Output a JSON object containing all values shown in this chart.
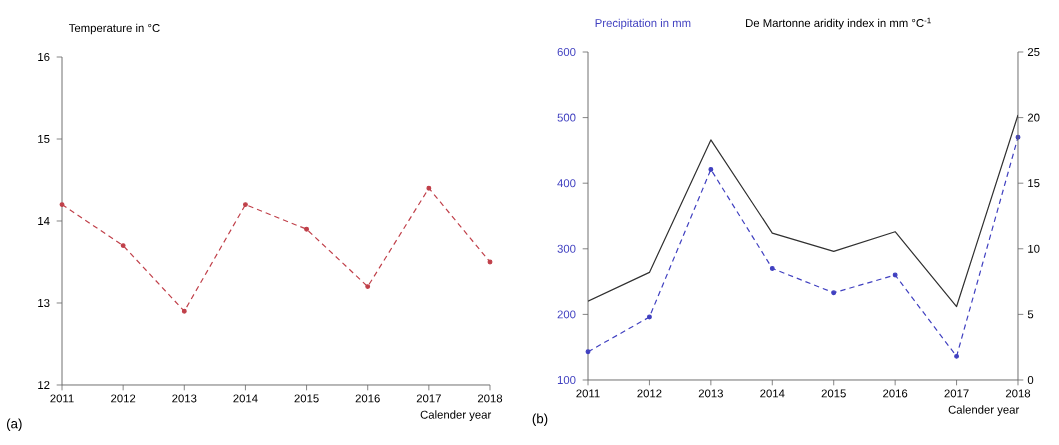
{
  "chart_data": [
    {
      "type": "line",
      "ylabel": "Temperature in °C",
      "xlabel": "Calender year",
      "annotations": [
        "(a)"
      ],
      "categories": [
        "2011",
        "2012",
        "2013",
        "2014",
        "2015",
        "2016",
        "2017",
        "2018"
      ],
      "series": [
        {
          "color": "#c0404a",
          "values": [
            14.2,
            13.7,
            12.9,
            14.2,
            13.9,
            13.2,
            14.4,
            13.5
          ],
          "marker": "circle",
          "line_style": "dashed"
        }
      ],
      "ylim": [
        12,
        16
      ],
      "yticks": [
        12,
        13,
        14,
        15,
        16
      ],
      "grid": false
    },
    {
      "type": "line",
      "ylabel": "Precipitation in mm",
      "y2label": "De Martonne aridity index in mm °C$^{-1}$",
      "xlabel": "Calender year",
      "annotations": [
        "(b)"
      ],
      "categories": [
        "2011",
        "2012",
        "2013",
        "2014",
        "2015",
        "2016",
        "2017",
        "2018"
      ],
      "series": [
        {
          "color": "#4040c0",
          "values": [
            143,
            196,
            421,
            270,
            233,
            260,
            136,
            470
          ],
          "marker": "circle",
          "line_style": "dashed"
        },
        {
          "color": "#303030",
          "values": [
            6.0,
            8.2,
            18.3,
            11.2,
            9.8,
            11.3,
            5.6,
            20.2
          ],
          "marker": "none",
          "line_style": "solid",
          "axis": "y2"
        }
      ],
      "ylim": [
        100,
        600
      ],
      "yticks": [
        100,
        200,
        300,
        400,
        500,
        600
      ],
      "y2lim": [
        0,
        25
      ],
      "y2ticks": [
        0,
        5,
        10,
        15,
        20,
        25
      ],
      "grid": false
    }
  ]
}
